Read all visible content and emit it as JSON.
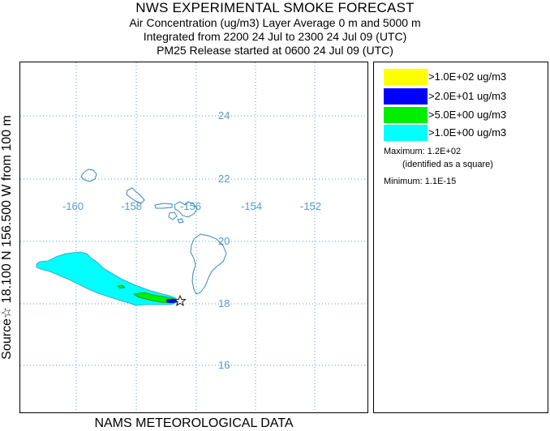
{
  "header": {
    "title": "NWS EXPERIMENTAL SMOKE FORECAST",
    "line2": "Air Concentration (ug/m3) Layer Average    0 m and  5000 m",
    "line3": "Integrated from 2200 24 Jul to 2300 24 Jul 09 (UTC)",
    "line4": "PM25 Release started at 0600 24 Jul 09 (UTC)"
  },
  "side_label": "Source☆ 18.100  N 156.500  W    from  100 m",
  "bottom_label": "NAMS METEOROLOGICAL DATA",
  "map": {
    "longitude_labels": [
      "-160",
      "-158",
      "-156",
      "-154",
      "-152"
    ],
    "latitude_labels": [
      "24",
      "22",
      "20",
      "18",
      "16"
    ],
    "source_marker": "star-icon",
    "gridline_color": "#5599cc",
    "coast_color": "#3388bb"
  },
  "legend": {
    "items": [
      {
        "label": ">1.0E+02 ug/m3",
        "color": "#ffff00"
      },
      {
        "label": ">2.0E+01 ug/m3",
        "color": "#0000ff"
      },
      {
        "label": ">5.0E+00 ug/m3",
        "color": "#00ee00"
      },
      {
        "label": ">1.0E+00 ug/m3",
        "color": "#00ffff"
      }
    ],
    "maximum": "Maximum: 1.2E+02",
    "maximum_note": "(identified as a square)",
    "minimum": "Minimum: 1.1E-15"
  }
}
